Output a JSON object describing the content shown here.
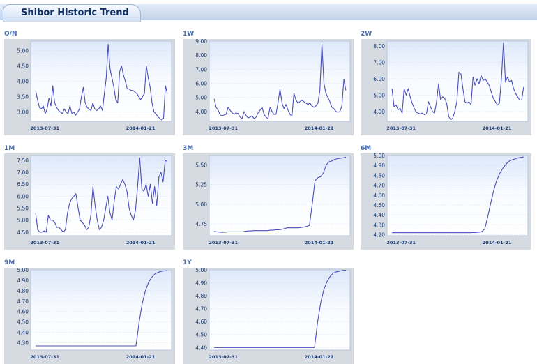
{
  "header": {
    "title": "Shibor Historic Trend"
  },
  "colors": {
    "line": "#4a4fb8",
    "tick_label": "#1a3d7a",
    "panel_bg": "#d6dbe2"
  },
  "chart_data": [
    {
      "type": "line",
      "title": "O/N",
      "x_ticks": [
        "2013-07-31",
        "2014-01-21"
      ],
      "ylim": [
        2.7,
        5.3
      ],
      "y_ticks": [
        "5.00",
        "4.50",
        "4.00",
        "3.50",
        "3.00"
      ],
      "values": [
        3.7,
        3.4,
        3.15,
        3.1,
        3.2,
        2.95,
        3.1,
        3.45,
        3.2,
        3.85,
        3.3,
        3.15,
        3.05,
        3.0,
        2.95,
        3.1,
        3.0,
        2.95,
        3.2,
        2.95,
        3.0,
        2.9,
        3.0,
        3.1,
        3.5,
        3.8,
        3.3,
        3.15,
        3.1,
        3.05,
        3.3,
        3.1,
        3.05,
        3.1,
        3.2,
        3.05,
        3.6,
        4.1,
        5.2,
        4.4,
        4.1,
        3.8,
        3.4,
        3.3,
        4.3,
        4.5,
        4.2,
        4.0,
        3.75,
        3.75,
        3.7,
        3.7,
        3.65,
        3.6,
        3.5,
        3.4,
        3.5,
        3.6,
        4.5,
        4.1,
        3.8,
        3.3,
        3.0,
        2.95,
        2.85,
        2.8,
        2.75,
        2.8,
        3.85,
        3.6
      ]
    },
    {
      "type": "line",
      "title": "1W",
      "x_ticks": [
        "2013-07-31",
        "2014-01-21"
      ],
      "ylim": [
        3.3,
        9.0
      ],
      "y_ticks": [
        "9.00",
        "8.00",
        "7.00",
        "6.00",
        "5.00",
        "4.00"
      ],
      "values": [
        4.9,
        4.3,
        4.1,
        3.75,
        3.7,
        3.75,
        3.8,
        4.3,
        4.1,
        3.9,
        3.8,
        3.9,
        3.85,
        3.6,
        3.5,
        4.0,
        3.7,
        3.55,
        3.6,
        3.7,
        3.5,
        3.6,
        3.9,
        4.1,
        4.3,
        3.8,
        3.6,
        3.5,
        4.3,
        4.0,
        3.8,
        3.8,
        4.6,
        5.6,
        4.6,
        4.2,
        4.5,
        4.1,
        3.8,
        3.7,
        5.3,
        4.8,
        4.6,
        4.7,
        4.8,
        4.7,
        4.6,
        4.5,
        4.6,
        4.4,
        4.3,
        4.4,
        4.6,
        5.5,
        8.8,
        6.0,
        5.3,
        5.0,
        4.7,
        4.3,
        4.2,
        4.0,
        3.95,
        4.0,
        4.4,
        6.3,
        5.5
      ]
    },
    {
      "type": "line",
      "title": "2W",
      "x_ticks": [
        "2013-07-31",
        "2014-01-21"
      ],
      "ylim": [
        3.4,
        8.3
      ],
      "y_ticks": [
        "8.00",
        "7.00",
        "6.00",
        "5.00",
        "4.00"
      ],
      "values": [
        5.4,
        4.3,
        4.4,
        4.1,
        4.2,
        3.9,
        5.4,
        5.0,
        5.4,
        4.9,
        4.5,
        4.2,
        3.95,
        3.9,
        3.85,
        3.9,
        3.8,
        3.85,
        4.6,
        4.3,
        4.0,
        3.9,
        4.6,
        5.7,
        4.7,
        4.9,
        4.8,
        4.5,
        3.7,
        3.5,
        3.6,
        4.0,
        4.6,
        6.4,
        6.3,
        5.4,
        4.6,
        4.5,
        4.6,
        4.4,
        6.1,
        5.6,
        6.0,
        5.7,
        6.2,
        5.9,
        6.0,
        5.8,
        5.6,
        5.2,
        4.8,
        4.6,
        4.4,
        4.5,
        6.0,
        8.2,
        5.8,
        6.1,
        5.8,
        5.9,
        5.4,
        5.1,
        4.9,
        4.7,
        4.7,
        5.5
      ]
    },
    {
      "type": "line",
      "title": "1M",
      "x_ticks": [
        "2013-07-31",
        "2014-01-21"
      ],
      "ylim": [
        4.35,
        7.7
      ],
      "y_ticks": [
        "7.50",
        "7.00",
        "6.50",
        "6.00",
        "5.50",
        "5.00",
        "4.50"
      ],
      "values": [
        5.3,
        4.6,
        4.5,
        4.5,
        4.55,
        4.5,
        5.2,
        5.0,
        5.0,
        4.9,
        4.7,
        4.7,
        4.6,
        4.5,
        4.6,
        5.3,
        5.7,
        5.9,
        6.0,
        6.1,
        5.5,
        5.0,
        4.9,
        4.8,
        4.6,
        4.7,
        5.2,
        6.4,
        5.6,
        5.0,
        4.6,
        4.7,
        5.0,
        5.5,
        6.0,
        5.3,
        5.0,
        5.8,
        6.4,
        6.3,
        6.5,
        6.7,
        6.5,
        6.2,
        5.5,
        5.2,
        5.0,
        5.4,
        6.4,
        7.6,
        6.3,
        6.2,
        6.5,
        6.0,
        6.5,
        5.7,
        6.4,
        5.6,
        6.8,
        7.0,
        6.6,
        7.5,
        7.45
      ]
    },
    {
      "type": "line",
      "title": "3M",
      "x_ticks": [
        "2013-07-31",
        "2014-01-21"
      ],
      "ylim": [
        4.6,
        5.62
      ],
      "y_ticks": [
        "5.50",
        "5.25",
        "5.00",
        "4.75"
      ],
      "values": [
        4.655,
        4.65,
        4.645,
        4.645,
        4.645,
        4.65,
        4.65,
        4.65,
        4.65,
        4.65,
        4.65,
        4.655,
        4.66,
        4.66,
        4.665,
        4.665,
        4.665,
        4.665,
        4.665,
        4.665,
        4.67,
        4.67,
        4.675,
        4.675,
        4.68,
        4.69,
        4.7,
        4.7,
        4.7,
        4.7,
        4.7,
        4.705,
        4.71,
        4.72,
        4.73,
        5.0,
        5.3,
        5.34,
        5.35,
        5.4,
        5.5,
        5.54,
        5.55,
        5.57,
        5.58,
        5.585,
        5.59,
        5.6
      ]
    },
    {
      "type": "line",
      "title": "6M",
      "x_ticks": [
        "2013-07-31",
        "2014-01-21"
      ],
      "ylim": [
        4.19,
        5.0
      ],
      "y_ticks": [
        "5.00",
        "4.90",
        "4.80",
        "4.70",
        "4.60",
        "4.50",
        "4.40",
        "4.30",
        "4.20"
      ],
      "values": [
        4.22,
        4.22,
        4.22,
        4.22,
        4.22,
        4.22,
        4.22,
        4.22,
        4.22,
        4.22,
        4.22,
        4.22,
        4.22,
        4.22,
        4.22,
        4.22,
        4.22,
        4.22,
        4.22,
        4.22,
        4.22,
        4.22,
        4.22,
        4.22,
        4.22,
        4.22,
        4.22,
        4.222,
        4.223,
        4.225,
        4.23,
        4.26,
        4.38,
        4.52,
        4.65,
        4.75,
        4.82,
        4.87,
        4.91,
        4.94,
        4.955,
        4.965,
        4.975,
        4.98,
        4.985
      ]
    },
    {
      "type": "line",
      "title": "9M",
      "x_ticks": [
        "2013-07-31",
        "2014-01-21"
      ],
      "ylim": [
        4.23,
        5.0
      ],
      "y_ticks": [
        "5.00",
        "4.90",
        "4.80",
        "4.70",
        "4.60",
        "4.50",
        "4.40",
        "4.30"
      ],
      "values": [
        4.27,
        4.27,
        4.27,
        4.27,
        4.27,
        4.27,
        4.27,
        4.27,
        4.27,
        4.27,
        4.27,
        4.27,
        4.27,
        4.27,
        4.27,
        4.27,
        4.27,
        4.27,
        4.27,
        4.27,
        4.27,
        4.27,
        4.27,
        4.27,
        4.27,
        4.27,
        4.27,
        4.27,
        4.27,
        4.27,
        4.27,
        4.27,
        4.27,
        4.5,
        4.68,
        4.8,
        4.88,
        4.93,
        4.96,
        4.975,
        4.985,
        4.99,
        4.992
      ]
    },
    {
      "type": "line",
      "title": "1Y",
      "x_ticks": [
        "2013-07-31",
        "2014-01-21"
      ],
      "ylim": [
        4.38,
        5.0
      ],
      "y_ticks": [
        "5.00",
        "4.90",
        "4.80",
        "4.70",
        "4.60",
        "4.50",
        "4.40"
      ],
      "values": [
        4.4,
        4.4,
        4.4,
        4.4,
        4.4,
        4.4,
        4.4,
        4.4,
        4.4,
        4.4,
        4.4,
        4.4,
        4.4,
        4.4,
        4.4,
        4.4,
        4.4,
        4.4,
        4.4,
        4.4,
        4.4,
        4.4,
        4.4,
        4.4,
        4.4,
        4.4,
        4.4,
        4.4,
        4.4,
        4.4,
        4.4,
        4.4,
        4.4,
        4.6,
        4.75,
        4.85,
        4.91,
        4.95,
        4.975,
        4.985,
        4.99,
        4.995,
        4.998
      ]
    }
  ]
}
